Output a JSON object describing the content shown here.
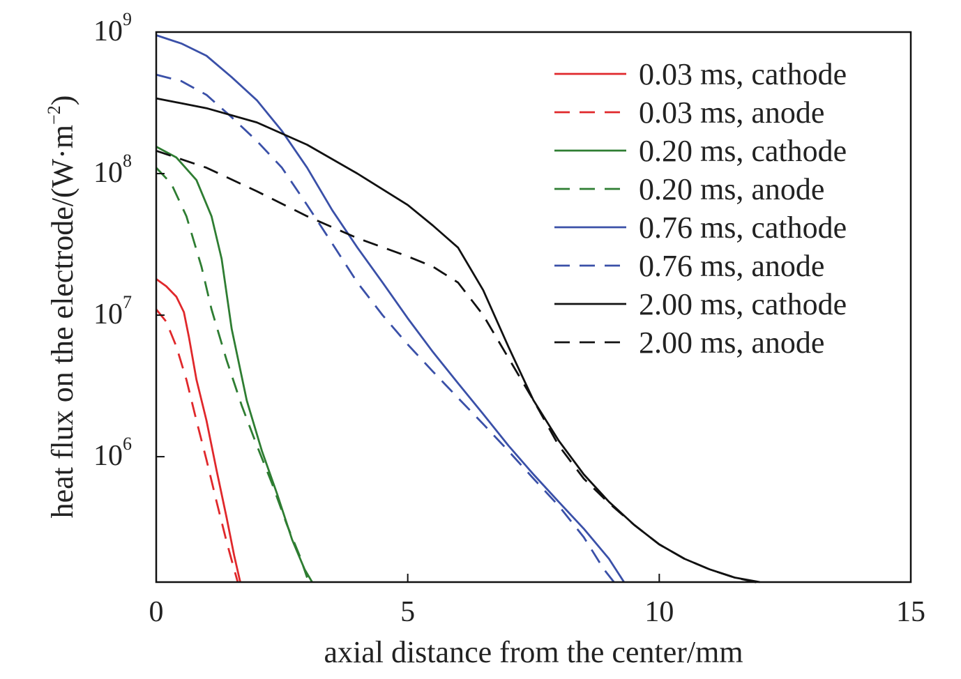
{
  "chart_data": {
    "type": "line",
    "xlabel": "axial distance from the center/mm",
    "ylabel_main": "heat flux on the electrode/(W·m",
    "ylabel_sup": "−2",
    "ylabel_close": ")",
    "xlim": [
      0,
      15
    ],
    "ylim": [
      130000,
      1000000000
    ],
    "yscale": "log",
    "xticks": [
      "0",
      "5",
      "10",
      "15"
    ],
    "xtick_values": [
      0,
      5,
      10,
      15
    ],
    "ytick_base": "10",
    "yticks": [
      {
        "exp": "6",
        "value": 1000000
      },
      {
        "exp": "7",
        "value": 10000000
      },
      {
        "exp": "8",
        "value": 100000000
      },
      {
        "exp": "9",
        "value": 1000000000
      }
    ],
    "grid": false,
    "legend_position": "top-right",
    "series": [
      {
        "name": "0.03 ms, cathode",
        "color": "#e0282b",
        "dash": "solid",
        "points": [
          [
            0,
            18000000
          ],
          [
            0.2,
            16000000
          ],
          [
            0.4,
            13500000
          ],
          [
            0.55,
            10500000
          ],
          [
            0.65,
            7000000
          ],
          [
            0.8,
            3500000
          ],
          [
            1.0,
            1800000
          ],
          [
            1.2,
            800000
          ],
          [
            1.4,
            370000
          ],
          [
            1.55,
            200000
          ],
          [
            1.67,
            130000
          ]
        ]
      },
      {
        "name": "0.03 ms, anode",
        "color": "#e0282b",
        "dash": "dashed",
        "points": [
          [
            0,
            11000000
          ],
          [
            0.2,
            9000000
          ],
          [
            0.4,
            6000000
          ],
          [
            0.6,
            3500000
          ],
          [
            0.8,
            1800000
          ],
          [
            1.0,
            950000
          ],
          [
            1.2,
            480000
          ],
          [
            1.4,
            250000
          ],
          [
            1.55,
            160000
          ],
          [
            1.62,
            130000
          ]
        ]
      },
      {
        "name": "0.20 ms, cathode",
        "color": "#2e7d32",
        "dash": "solid",
        "points": [
          [
            0,
            155000000
          ],
          [
            0.4,
            130000000
          ],
          [
            0.8,
            90000000
          ],
          [
            1.1,
            50000000
          ],
          [
            1.3,
            25000000
          ],
          [
            1.5,
            8000000
          ],
          [
            1.8,
            2500000
          ],
          [
            2.1,
            1100000
          ],
          [
            2.4,
            550000
          ],
          [
            2.7,
            260000
          ],
          [
            2.95,
            160000
          ],
          [
            3.1,
            130000
          ]
        ]
      },
      {
        "name": "0.20 ms, anode",
        "color": "#2e7d32",
        "dash": "dashed",
        "points": [
          [
            0,
            110000000
          ],
          [
            0.3,
            85000000
          ],
          [
            0.6,
            50000000
          ],
          [
            0.9,
            22000000
          ],
          [
            1.1,
            11000000
          ],
          [
            1.4,
            4800000
          ],
          [
            1.7,
            2300000
          ],
          [
            2.0,
            1200000
          ],
          [
            2.3,
            650000
          ],
          [
            2.6,
            330000
          ],
          [
            2.85,
            200000
          ],
          [
            3.0,
            140000
          ]
        ]
      },
      {
        "name": "0.76 ms, cathode",
        "color": "#3a50a8",
        "dash": "solid",
        "points": [
          [
            0,
            950000000
          ],
          [
            0.5,
            830000000
          ],
          [
            1.0,
            680000000
          ],
          [
            1.5,
            480000000
          ],
          [
            2.0,
            330000000
          ],
          [
            2.5,
            200000000
          ],
          [
            3.0,
            110000000
          ],
          [
            3.5,
            55000000
          ],
          [
            4.0,
            30000000
          ],
          [
            4.5,
            17000000
          ],
          [
            5.0,
            9500000
          ],
          [
            5.5,
            5500000
          ],
          [
            6.0,
            3300000
          ],
          [
            6.5,
            2000000
          ],
          [
            7.0,
            1200000
          ],
          [
            7.5,
            750000
          ],
          [
            8.0,
            480000
          ],
          [
            8.5,
            310000
          ],
          [
            9.0,
            190000
          ],
          [
            9.3,
            130000
          ]
        ]
      },
      {
        "name": "0.76 ms, anode",
        "color": "#3a50a8",
        "dash": "dashed",
        "points": [
          [
            0,
            500000000
          ],
          [
            0.5,
            450000000
          ],
          [
            1.0,
            360000000
          ],
          [
            1.5,
            250000000
          ],
          [
            2.0,
            170000000
          ],
          [
            2.5,
            110000000
          ],
          [
            3.0,
            60000000
          ],
          [
            3.5,
            32000000
          ],
          [
            4.0,
            17000000
          ],
          [
            4.5,
            10000000
          ],
          [
            5.0,
            6200000
          ],
          [
            5.5,
            4000000
          ],
          [
            6.0,
            2600000
          ],
          [
            6.5,
            1700000
          ],
          [
            7.0,
            1100000
          ],
          [
            7.5,
            700000
          ],
          [
            8.0,
            450000
          ],
          [
            8.5,
            270000
          ],
          [
            8.9,
            160000
          ],
          [
            9.1,
            130000
          ]
        ]
      },
      {
        "name": "2.00 ms, cathode",
        "color": "#111111",
        "dash": "solid",
        "points": [
          [
            0,
            340000000
          ],
          [
            1.0,
            290000000
          ],
          [
            2.0,
            230000000
          ],
          [
            3.0,
            160000000
          ],
          [
            4.0,
            100000000
          ],
          [
            5.0,
            60000000
          ],
          [
            5.5,
            43000000
          ],
          [
            6.0,
            30000000
          ],
          [
            6.5,
            15000000
          ],
          [
            7.0,
            6000000
          ],
          [
            7.5,
            2500000
          ],
          [
            8.0,
            1300000
          ],
          [
            8.5,
            750000
          ],
          [
            9.0,
            480000
          ],
          [
            9.5,
            330000
          ],
          [
            10.0,
            240000
          ],
          [
            10.5,
            190000
          ],
          [
            11.0,
            160000
          ],
          [
            11.5,
            140000
          ],
          [
            12.0,
            130000
          ]
        ]
      },
      {
        "name": "2.00 ms, anode",
        "color": "#111111",
        "dash": "dashed",
        "points": [
          [
            0,
            145000000
          ],
          [
            1.0,
            110000000
          ],
          [
            2.0,
            75000000
          ],
          [
            3.0,
            50000000
          ],
          [
            4.0,
            35000000
          ],
          [
            5.0,
            26000000
          ],
          [
            5.5,
            22000000
          ],
          [
            6.0,
            17000000
          ],
          [
            6.5,
            10000000
          ],
          [
            7.0,
            5000000
          ],
          [
            7.5,
            2500000
          ],
          [
            8.0,
            1200000
          ],
          [
            8.5,
            700000
          ],
          [
            9.0,
            470000
          ],
          [
            9.5,
            330000
          ],
          [
            10.0,
            240000
          ],
          [
            10.5,
            190000
          ],
          [
            11.0,
            160000
          ],
          [
            11.5,
            140000
          ],
          [
            12.0,
            128000
          ]
        ]
      }
    ]
  }
}
